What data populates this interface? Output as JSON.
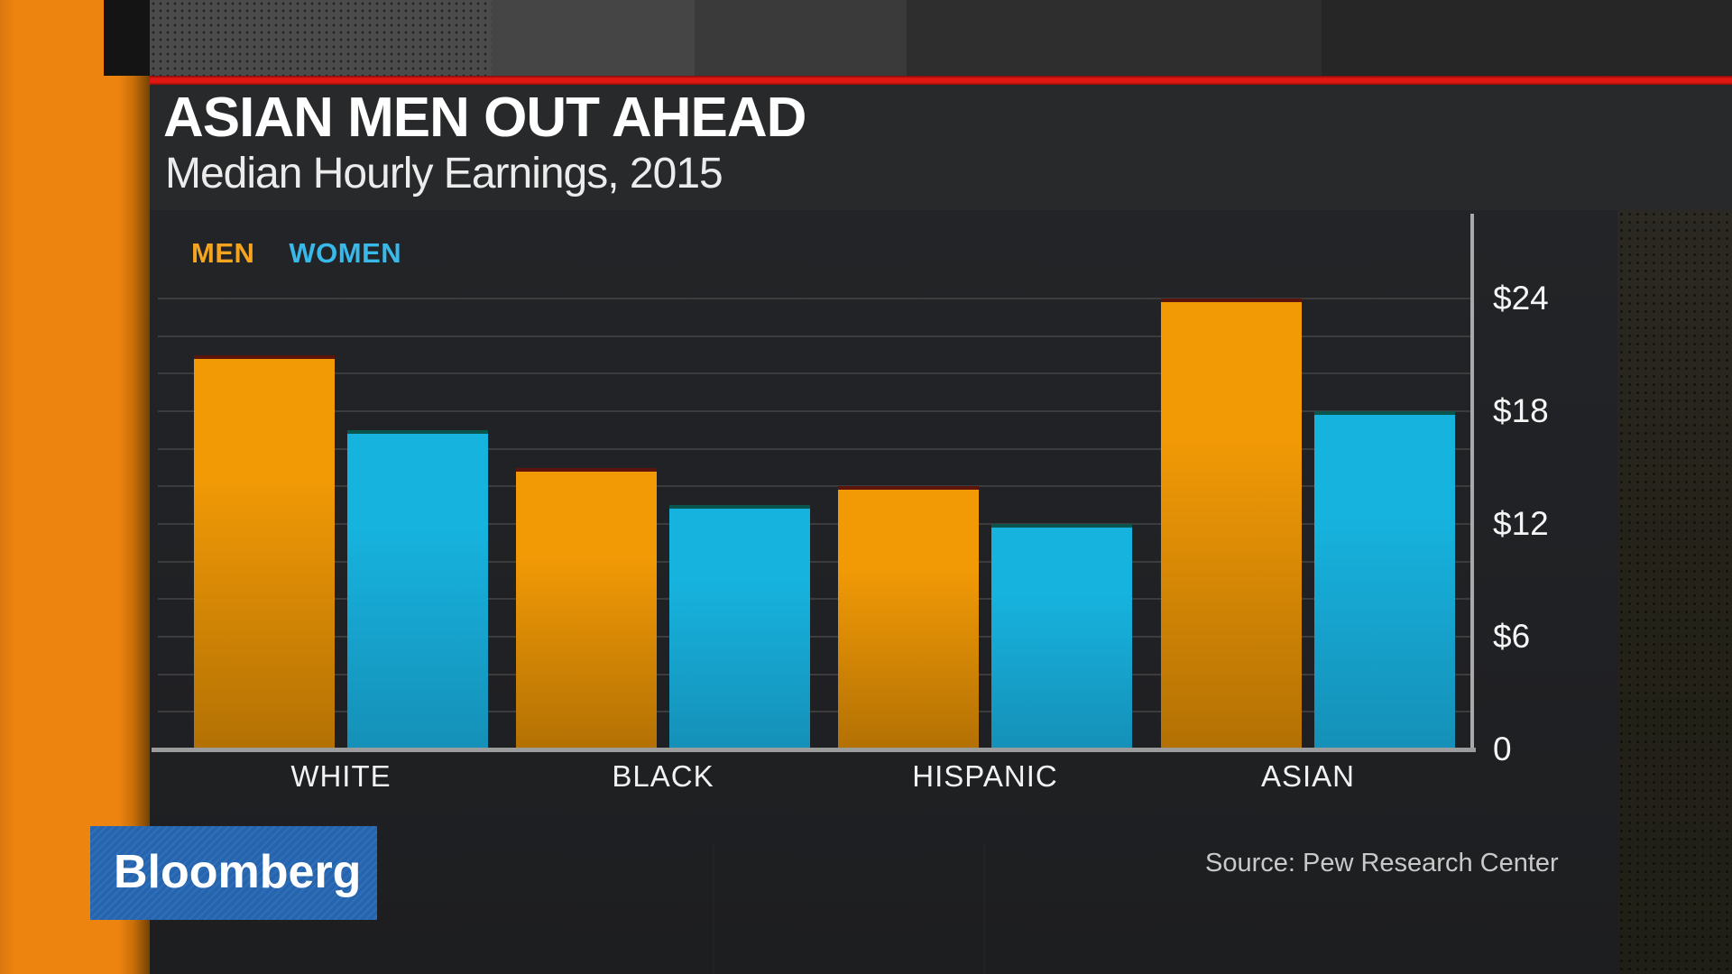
{
  "header": {
    "title": "ASIAN MEN OUT AHEAD",
    "subtitle": "Median Hourly Earnings, 2015"
  },
  "branding": {
    "logo_text": "Bloomberg",
    "logo_bg": "#2565b0"
  },
  "source_note": "Source: Pew Research Center",
  "accent_colors": {
    "red_rule": "#e01713",
    "sidebar_orange": "#ee8410",
    "men_legend": "#f5a41f",
    "women_legend": "#38b9ea"
  },
  "chart_data": {
    "type": "bar",
    "title": "ASIAN MEN OUT AHEAD",
    "subtitle": "Median Hourly Earnings, 2015",
    "categories": [
      "WHITE",
      "BLACK",
      "HISPANIC",
      "ASIAN"
    ],
    "series": [
      {
        "name": "MEN",
        "values": [
          21,
          15,
          14,
          24
        ],
        "color_top": "#f29a06",
        "color_bottom": "#b37104",
        "edge": "#5c150b"
      },
      {
        "name": "WOMEN",
        "values": [
          17,
          13,
          12,
          18
        ],
        "color_top": "#16b3de",
        "color_bottom": "#1590b8",
        "edge": "#0a564f"
      }
    ],
    "yticks": [
      {
        "label": "$24",
        "value": 24
      },
      {
        "label": "$18",
        "value": 18
      },
      {
        "label": "$12",
        "value": 12
      },
      {
        "label": "$6",
        "value": 6
      },
      {
        "label": "0",
        "value": 0
      }
    ],
    "ylim": [
      0,
      24
    ],
    "gridline_step": 2,
    "grid": true,
    "legend_position": "top-left"
  }
}
